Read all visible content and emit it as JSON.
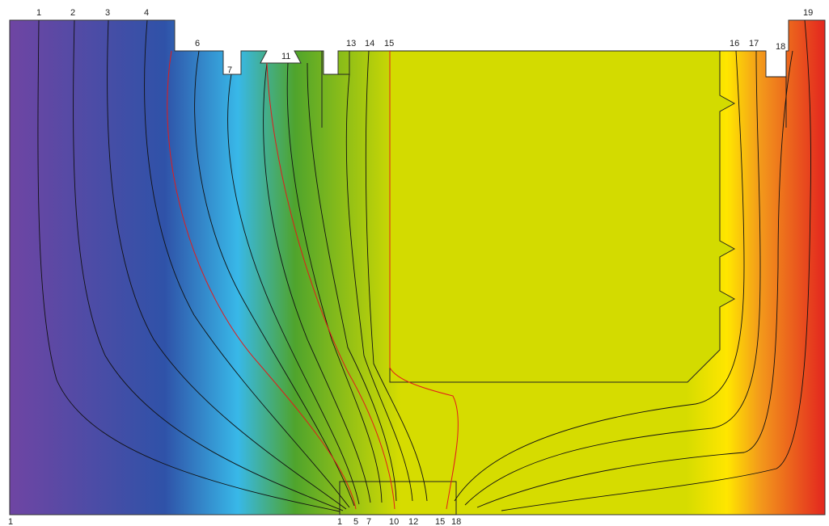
{
  "labels": {
    "top": [
      "1",
      "2",
      "3",
      "4",
      "6",
      "7",
      "11",
      "13",
      "14",
      "15",
      "16",
      "17",
      "18",
      "19"
    ],
    "bottom": [
      "1",
      "1",
      "5",
      "7",
      "10",
      "12",
      "15",
      "18"
    ]
  },
  "colors": {
    "violet": "#6f45a3",
    "blue": "#2f52a8",
    "cyan": "#38b8e8",
    "green": "#4fa42c",
    "yellow_green": "#d6dc00",
    "yellow": "#ffe600",
    "orange": "#f39a1b",
    "red": "#e3261f",
    "isoline": "#111111",
    "highlight_isoline": "#e21b1b"
  }
}
